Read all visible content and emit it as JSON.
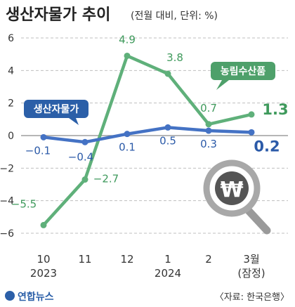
{
  "title": "생산자물가 추이",
  "subtitle": "(전월 대비, 단위: %)",
  "source": "〈자료: 한국은행〉",
  "logo": "연합뉴스",
  "colors": {
    "producer": "#4472c4",
    "producer_label_bg": "#2b5fa8",
    "agri": "#5fb07a",
    "agri_label_bg": "#4ea06a",
    "producer_text": "#2b5aa8",
    "agri_text": "#3f9a5c",
    "axis_text": "#333333",
    "grid": "#bfbfbf"
  },
  "icon": "magnifier-won-icon",
  "chart_data": {
    "type": "line",
    "categories": [
      "10",
      "11",
      "12",
      "1",
      "2",
      "3월"
    ],
    "category_sublabels": [
      "2023",
      "",
      "",
      "2024",
      "",
      "(잠정)"
    ],
    "ylim": [
      -6,
      6
    ],
    "yticks": [
      "6",
      "4",
      "2",
      "0",
      "−2",
      "−4",
      "−6"
    ],
    "ytick_values": [
      6,
      4,
      2,
      0,
      -2,
      -4,
      -6
    ],
    "series": [
      {
        "name": "생산자물가",
        "values": [
          -0.1,
          -0.4,
          0.1,
          0.5,
          0.3,
          0.2
        ],
        "labels": [
          "−0.1",
          "−0.4",
          "0.1",
          "0.5",
          "0.3",
          "0.2"
        ]
      },
      {
        "name": "농림수산품",
        "values": [
          -5.5,
          -2.7,
          4.9,
          3.8,
          0.7,
          1.3
        ],
        "labels": [
          "−5.5",
          "−2.7",
          "4.9",
          "3.8",
          "0.7",
          "1.3"
        ]
      }
    ]
  }
}
